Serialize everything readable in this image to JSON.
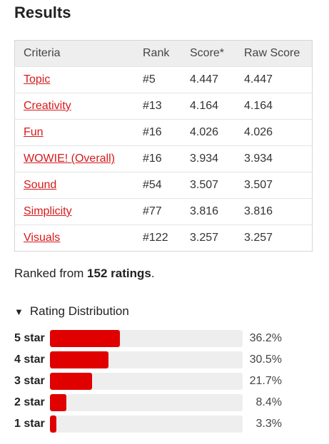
{
  "heading": "Results",
  "table": {
    "headers": {
      "criteria": "Criteria",
      "rank": "Rank",
      "score": "Score*",
      "raw_score": "Raw Score"
    },
    "rows": [
      {
        "criteria": "Topic",
        "rank": "#5",
        "score": "4.447",
        "raw_score": "4.447"
      },
      {
        "criteria": "Creativity",
        "rank": "#13",
        "score": "4.164",
        "raw_score": "4.164"
      },
      {
        "criteria": "Fun",
        "rank": "#16",
        "score": "4.026",
        "raw_score": "4.026"
      },
      {
        "criteria": "WOWIE! (Overall)",
        "rank": "#16",
        "score": "3.934",
        "raw_score": "3.934"
      },
      {
        "criteria": "Sound",
        "rank": "#54",
        "score": "3.507",
        "raw_score": "3.507"
      },
      {
        "criteria": "Simplicity",
        "rank": "#77",
        "score": "3.816",
        "raw_score": "3.816"
      },
      {
        "criteria": "Visuals",
        "rank": "#122",
        "score": "3.257",
        "raw_score": "3.257"
      }
    ]
  },
  "ranked": {
    "prefix": "Ranked from ",
    "count": "152 ratings",
    "suffix": "."
  },
  "distribution": {
    "toggle_icon": "triangle-down-icon",
    "label": "Rating Distribution",
    "bar_color": "#e00000",
    "track_color": "#eeeeee",
    "rows": [
      {
        "label": "5 star",
        "percent_text": "36.2%",
        "percent": 36.2
      },
      {
        "label": "4 star",
        "percent_text": "30.5%",
        "percent": 30.5
      },
      {
        "label": "3 star",
        "percent_text": "21.7%",
        "percent": 21.7
      },
      {
        "label": "2 star",
        "percent_text": "8.4%",
        "percent": 8.4
      },
      {
        "label": "1 star",
        "percent_text": "3.3%",
        "percent": 3.3
      }
    ]
  },
  "colors": {
    "link": "#d7191c",
    "header_bg": "#eeeeee"
  }
}
